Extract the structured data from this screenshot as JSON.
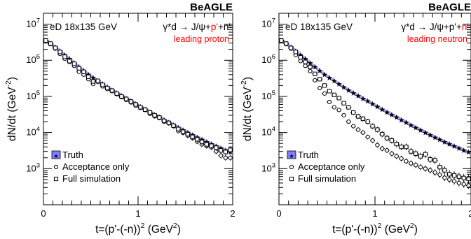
{
  "chart_data": [
    {
      "type": "scatter",
      "brand": "BeAGLE",
      "beam": "eD 18x135 GeV",
      "reaction": [
        "γ*d → J/ψ+p'+",
        "n'"
      ],
      "reaction_highlight": "p'",
      "reaction_parts": [
        "γ*d → J/ψ+",
        "p'",
        "+n'"
      ],
      "tag": "leading proton",
      "xlabel_parts": [
        "t=(p'-(-n))",
        "2",
        " (GeV",
        "2",
        ")"
      ],
      "ylabel_parts": [
        "dN/dt (GeV",
        "-2",
        ")"
      ],
      "xlim": [
        0,
        2
      ],
      "ylim": [
        100,
        20000000
      ],
      "yscale": "log",
      "x_ticks": [
        "0",
        "1",
        "2"
      ],
      "y_ticks": [
        {
          "base": "10",
          "exp": "3"
        },
        {
          "base": "10",
          "exp": "4"
        },
        {
          "base": "10",
          "exp": "5"
        },
        {
          "base": "10",
          "exp": "6"
        },
        {
          "base": "10",
          "exp": "7"
        }
      ],
      "legend": [
        "Truth",
        "Acceptance only",
        "Full simulation"
      ],
      "highlight_color": "#ff0000",
      "truth_color": "#8080ff",
      "series": [
        {
          "name": "Truth",
          "x": [
            0.025,
            0.075,
            0.125,
            0.175,
            0.225,
            0.275,
            0.325,
            0.375,
            0.425,
            0.475,
            0.525,
            0.575,
            0.625,
            0.675,
            0.725,
            0.775,
            0.825,
            0.875,
            0.925,
            0.975,
            1.025,
            1.075,
            1.125,
            1.175,
            1.225,
            1.275,
            1.325,
            1.375,
            1.425,
            1.475,
            1.525,
            1.575,
            1.625,
            1.675,
            1.725,
            1.775,
            1.825,
            1.875,
            1.925,
            1.975
          ],
          "y": [
            3500000,
            2900000,
            2300000,
            1800000,
            1400000,
            1100000,
            850000,
            660000,
            520000,
            410000,
            330000,
            270000,
            220000,
            180000,
            150000,
            125000,
            105000,
            88000,
            74000,
            62000,
            52000,
            44000,
            37000,
            31000,
            26500,
            22500,
            19000,
            16000,
            13800,
            11800,
            10000,
            8600,
            7400,
            6400,
            5500,
            4800,
            4200,
            3700,
            3200,
            2900
          ]
        },
        {
          "name": "Acceptance only",
          "x": [
            0.025,
            0.075,
            0.125,
            0.175,
            0.225,
            0.275,
            0.325,
            0.375,
            0.425,
            0.475,
            0.525,
            0.575,
            0.625,
            0.675,
            0.725,
            0.775,
            0.825,
            0.875,
            0.925,
            0.975,
            1.025,
            1.075,
            1.125,
            1.175,
            1.225,
            1.275,
            1.325,
            1.375,
            1.425,
            1.475,
            1.525,
            1.575,
            1.625,
            1.675,
            1.725,
            1.775,
            1.825,
            1.875,
            1.925,
            1.975
          ],
          "y": [
            3400000,
            2800000,
            2100000,
            1500000,
            1100000,
            900000,
            700000,
            480000,
            400000,
            300000,
            220000,
            250000,
            190000,
            160000,
            140000,
            115000,
            95000,
            80000,
            68000,
            55000,
            48000,
            42000,
            33000,
            28000,
            25000,
            20000,
            18000,
            15000,
            11000,
            9800,
            8200,
            7000,
            5600,
            4700,
            4200,
            3900,
            3000,
            2300,
            2000,
            2000
          ]
        },
        {
          "name": "Full simulation",
          "x": [
            0.025,
            0.075,
            0.125,
            0.175,
            0.225,
            0.275,
            0.325,
            0.375,
            0.425,
            0.475,
            0.525,
            0.575,
            0.625,
            0.675,
            0.725,
            0.775,
            0.825,
            0.875,
            0.925,
            0.975,
            1.025,
            1.075,
            1.125,
            1.175,
            1.225,
            1.275,
            1.325,
            1.375,
            1.425,
            1.475,
            1.525,
            1.575,
            1.625,
            1.675,
            1.725,
            1.775,
            1.825,
            1.875,
            1.925,
            1.975
          ],
          "y": [
            3500000,
            2900000,
            2200000,
            1700000,
            1250000,
            950000,
            800000,
            600000,
            480000,
            350000,
            260000,
            270000,
            210000,
            170000,
            145000,
            120000,
            100000,
            85000,
            72000,
            60000,
            50000,
            43000,
            36000,
            30000,
            26000,
            21000,
            18500,
            15500,
            12500,
            10500,
            9000,
            7600,
            6500,
            5500,
            4700,
            4300,
            3800,
            3200,
            2900,
            3300
          ]
        }
      ]
    },
    {
      "type": "scatter",
      "brand": "BeAGLE",
      "beam": "eD 18x135 GeV",
      "reaction_highlight": "n'",
      "reaction_parts": [
        "γ*d → J/ψ+p'+",
        "n'",
        ""
      ],
      "tag": "leading neutron",
      "xlabel_parts": [
        "t=(p'-(-n))",
        "2",
        " (GeV",
        "2",
        ")"
      ],
      "ylabel_parts": [
        "dN/dt (GeV",
        "-2",
        ")"
      ],
      "xlim": [
        0,
        2
      ],
      "ylim": [
        100,
        20000000
      ],
      "yscale": "log",
      "x_ticks": [
        "0",
        "1",
        "2"
      ],
      "y_ticks": [
        {
          "base": "10",
          "exp": "3"
        },
        {
          "base": "10",
          "exp": "4"
        },
        {
          "base": "10",
          "exp": "5"
        },
        {
          "base": "10",
          "exp": "6"
        },
        {
          "base": "10",
          "exp": "7"
        }
      ],
      "legend": [
        "Truth",
        "Acceptance only",
        "Full simulation"
      ],
      "highlight_color": "#ff0000",
      "truth_color": "#8080ff",
      "series": [
        {
          "name": "Truth",
          "x": [
            0.025,
            0.075,
            0.125,
            0.175,
            0.225,
            0.275,
            0.325,
            0.375,
            0.425,
            0.475,
            0.525,
            0.575,
            0.625,
            0.675,
            0.725,
            0.775,
            0.825,
            0.875,
            0.925,
            0.975,
            1.025,
            1.075,
            1.125,
            1.175,
            1.225,
            1.275,
            1.325,
            1.375,
            1.425,
            1.475,
            1.525,
            1.575,
            1.625,
            1.675,
            1.725,
            1.775,
            1.825,
            1.875,
            1.925,
            1.975
          ],
          "y": [
            3500000,
            2900000,
            2300000,
            1800000,
            1400000,
            1100000,
            850000,
            660000,
            520000,
            410000,
            330000,
            270000,
            220000,
            180000,
            150000,
            125000,
            105000,
            88000,
            74000,
            62000,
            52000,
            44000,
            37000,
            31000,
            26500,
            22500,
            19000,
            16000,
            13800,
            11800,
            10000,
            8600,
            7400,
            6400,
            5500,
            4800,
            4200,
            3700,
            3200,
            2900
          ]
        },
        {
          "name": "Acceptance only",
          "x": [
            0.025,
            0.075,
            0.125,
            0.175,
            0.225,
            0.275,
            0.325,
            0.375,
            0.425,
            0.475,
            0.525,
            0.575,
            0.625,
            0.675,
            0.725,
            0.775,
            0.825,
            0.875,
            0.925,
            0.975,
            1.025,
            1.075,
            1.125,
            1.175,
            1.225,
            1.275,
            1.325,
            1.375,
            1.425,
            1.475,
            1.525,
            1.575,
            1.625,
            1.675,
            1.725,
            1.775,
            1.825,
            1.875,
            1.925,
            1.975
          ],
          "y": [
            3400000,
            2800000,
            2100000,
            1400000,
            950000,
            700000,
            500000,
            280000,
            170000,
            120000,
            70000,
            50000,
            42000,
            30000,
            20000,
            15000,
            12000,
            10000,
            7500,
            6000,
            4500,
            3600,
            3200,
            2600,
            2200,
            1900,
            1600,
            1400,
            1250,
            1100,
            1000,
            900,
            780,
            680,
            560,
            500,
            450,
            400,
            370,
            340
          ]
        },
        {
          "name": "Full simulation",
          "x": [
            0.025,
            0.075,
            0.125,
            0.175,
            0.225,
            0.275,
            0.325,
            0.375,
            0.425,
            0.475,
            0.525,
            0.575,
            0.625,
            0.675,
            0.725,
            0.775,
            0.825,
            0.875,
            0.925,
            0.975,
            1.025,
            1.075,
            1.125,
            1.175,
            1.225,
            1.275,
            1.325,
            1.375,
            1.425,
            1.475,
            1.525,
            1.575,
            1.625,
            1.675,
            1.725,
            1.775,
            1.825,
            1.875,
            1.925,
            1.975
          ],
          "y": [
            3500000,
            2900000,
            2200000,
            1700000,
            1200000,
            900000,
            650000,
            420000,
            300000,
            200000,
            140000,
            110000,
            90000,
            65000,
            50000,
            36000,
            28000,
            24000,
            20000,
            15000,
            12000,
            9000,
            7000,
            6000,
            4800,
            4000,
            4000,
            3000,
            2600,
            2200,
            2500,
            1800,
            1700,
            1100,
            900,
            700,
            650,
            600,
            550,
            520
          ]
        }
      ]
    }
  ]
}
